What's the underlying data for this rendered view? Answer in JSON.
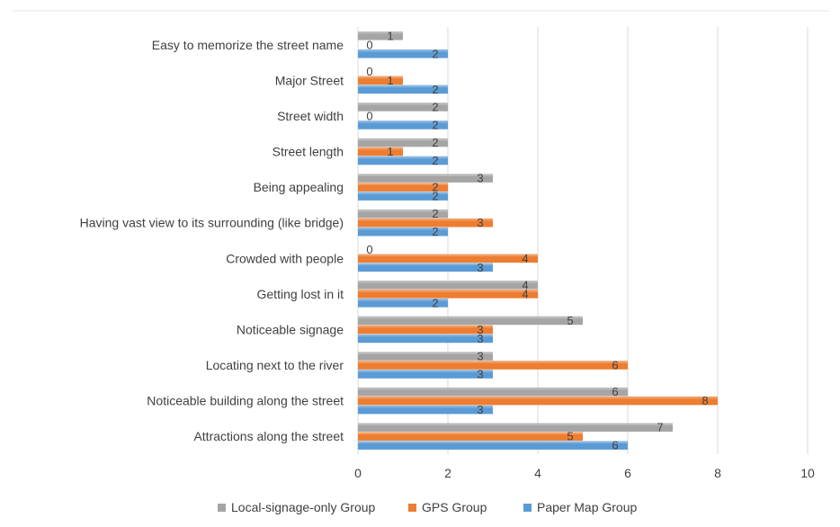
{
  "chart_data": {
    "type": "bar",
    "orientation": "horizontal",
    "categories": [
      "Easy to memorize the street name",
      "Major Street",
      "Street width",
      "Street length",
      "Being appealing",
      "Having vast view to its surrounding (like bridge)",
      "Crowded with people",
      "Getting lost in it",
      "Noticeable signage",
      "Locating next to the river",
      "Noticeable building along the street",
      "Attractions  along the street"
    ],
    "series": [
      {
        "name": "Local-signage-only Group",
        "color": "#a5a5a5",
        "values": [
          1,
          0,
          2,
          2,
          3,
          2,
          0,
          4,
          5,
          3,
          6,
          7
        ]
      },
      {
        "name": "GPS Group",
        "color": "#ed7d31",
        "values": [
          0,
          1,
          0,
          1,
          2,
          3,
          4,
          4,
          3,
          6,
          8,
          5
        ]
      },
      {
        "name": "Paper Map Group",
        "color": "#5b9bd5",
        "values": [
          2,
          2,
          2,
          2,
          2,
          2,
          3,
          2,
          3,
          3,
          3,
          6
        ]
      }
    ],
    "xlim": [
      0,
      10
    ],
    "xticks": [
      "0",
      "2",
      "4",
      "6",
      "8",
      "10"
    ],
    "grid": true,
    "legend_position": "bottom",
    "title": "",
    "xlabel": "",
    "ylabel": ""
  }
}
